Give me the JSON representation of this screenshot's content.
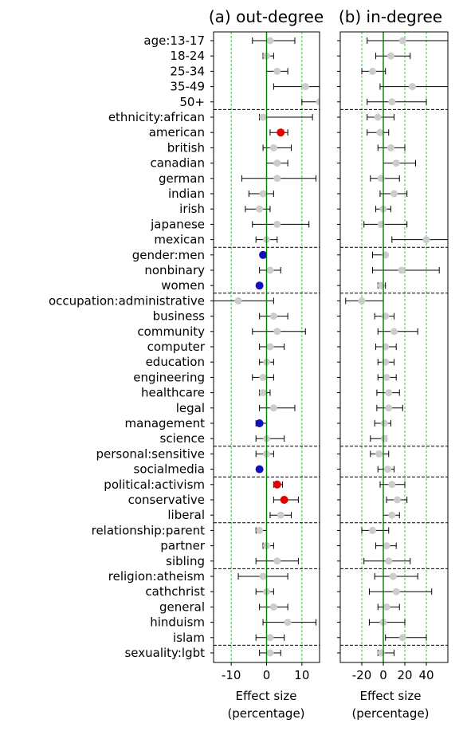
{
  "panels": [
    {
      "title": "(a) out-degree",
      "xlabel_line1": "Effect size",
      "xlabel_line2": "(percentage)",
      "xticks": [
        -10,
        0,
        10
      ],
      "xtick_labels": [
        "-10",
        "0",
        "10"
      ],
      "xlim": [
        -15,
        15
      ],
      "gridlines": [
        -10,
        0,
        10
      ]
    },
    {
      "title": "(b) in-degree",
      "xlabel_line1": "Effect size",
      "xlabel_line2": "(percentage)",
      "xticks": [
        -20,
        0,
        20,
        40
      ],
      "xtick_labels": [
        "-20",
        "0",
        "20",
        "40"
      ],
      "xlim": [
        -40,
        60
      ],
      "gridlines": [
        -20,
        0,
        20,
        40
      ]
    }
  ],
  "colors": {
    "significant_positive": "#e00000",
    "significant_negative": "#1010c0",
    "non_significant": "#cccccc",
    "zero_line": "#008000",
    "gridline": "#33cc33",
    "separator": "#000000",
    "errorbar": "#000000"
  },
  "chart_data": {
    "type": "scatter",
    "description_of_encoding": "point estimates with error bars (confidence interval); separate panels share categories",
    "categories": [
      "age:13-17",
      "18-24",
      "25-34",
      "35-49",
      "50+",
      "ethnicity:african",
      "american",
      "british",
      "canadian",
      "german",
      "indian",
      "irish",
      "japanese",
      "mexican",
      "gender:men",
      "nonbinary",
      "women",
      "occupation:administrative",
      "business",
      "community",
      "computer",
      "education",
      "engineering",
      "healthcare",
      "legal",
      "management",
      "science",
      "personal:sensitive",
      "socialmedia",
      "political:activism",
      "conservative",
      "liberal",
      "relationship:parent",
      "partner",
      "sibling",
      "religion:atheism",
      "cathchrist",
      "general",
      "hinduism",
      "islam",
      "sexuality:lgbt"
    ],
    "group_separators_after": [
      "50+",
      "mexican",
      "women",
      "science",
      "socialmedia",
      "liberal",
      "sibling",
      "islam"
    ],
    "series": [
      {
        "name": "(a) out-degree",
        "estimates": [
          1,
          0,
          3,
          11,
          15,
          -1,
          4,
          2,
          3,
          3,
          -1,
          -2,
          3,
          0,
          -1,
          1,
          -2,
          -8,
          2,
          3,
          1,
          0,
          -1,
          -1,
          2,
          -2,
          0,
          0,
          -2,
          3,
          5,
          4,
          -2,
          0,
          3,
          -1,
          0,
          2,
          6,
          1,
          1
        ],
        "lower": [
          -4,
          -1,
          0,
          2,
          10,
          -2,
          1,
          -1,
          0,
          -7,
          -5,
          -6,
          -4,
          -3,
          -1.5,
          -2,
          -2.5,
          -17,
          -2,
          -4,
          -2,
          -2,
          -4,
          -2,
          -2,
          -3,
          -3,
          -3,
          -2.5,
          2,
          2,
          1,
          -3,
          -1,
          -3,
          -8,
          -3,
          -2,
          -1,
          -3,
          -2
        ],
        "upper": [
          8,
          2,
          6,
          20,
          20,
          13,
          6,
          7,
          6,
          14,
          2,
          1,
          12,
          3,
          -0.5,
          4,
          -1.5,
          2,
          6,
          11,
          5,
          2,
          2,
          1,
          8,
          0,
          5,
          2,
          -1.5,
          4.5,
          9,
          7,
          0,
          2,
          9,
          6,
          2,
          6,
          14,
          5,
          4
        ],
        "significance": [
          "ns",
          "ns",
          "ns",
          "ns",
          "ns",
          "ns",
          "pos",
          "ns",
          "ns",
          "ns",
          "ns",
          "ns",
          "ns",
          "ns",
          "neg",
          "ns",
          "neg",
          "ns",
          "ns",
          "ns",
          "ns",
          "ns",
          "ns",
          "ns",
          "ns",
          "neg",
          "ns",
          "ns",
          "neg",
          "pos",
          "pos",
          "ns",
          "ns",
          "ns",
          "ns",
          "ns",
          "ns",
          "ns",
          "ns",
          "ns",
          "ns"
        ]
      },
      {
        "name": "(b) in-degree",
        "estimates": [
          18,
          7,
          -10,
          27,
          8,
          -5,
          -3,
          7,
          12,
          -2,
          10,
          0,
          -2,
          40,
          2,
          17,
          -2,
          -20,
          2,
          10,
          2,
          2,
          3,
          5,
          5,
          1,
          1,
          -4,
          4,
          8,
          13,
          8,
          -10,
          3,
          5,
          9,
          12,
          3,
          0,
          18,
          -2
        ],
        "lower": [
          -15,
          -7,
          -20,
          -3,
          -15,
          -15,
          -15,
          -5,
          0,
          -12,
          -3,
          -7,
          -18,
          8,
          -10,
          -10,
          -5,
          -35,
          -8,
          -5,
          -7,
          -5,
          -5,
          -6,
          -6,
          -8,
          -12,
          -12,
          -5,
          -3,
          3,
          0,
          -20,
          -7,
          -18,
          -8,
          -13,
          -5,
          -13,
          2,
          -5
        ],
        "upper": [
          60,
          25,
          2,
          60,
          40,
          10,
          5,
          20,
          30,
          15,
          22,
          7,
          22,
          60,
          3,
          52,
          2,
          0,
          10,
          32,
          12,
          10,
          12,
          15,
          18,
          7,
          3,
          5,
          10,
          20,
          22,
          15,
          5,
          12,
          25,
          32,
          45,
          15,
          20,
          40,
          10
        ],
        "significance": [
          "ns",
          "ns",
          "ns",
          "ns",
          "ns",
          "ns",
          "ns",
          "ns",
          "ns",
          "ns",
          "ns",
          "ns",
          "ns",
          "ns",
          "ns",
          "ns",
          "ns",
          "ns",
          "ns",
          "ns",
          "ns",
          "ns",
          "ns",
          "ns",
          "ns",
          "ns",
          "ns",
          "ns",
          "ns",
          "ns",
          "ns",
          "ns",
          "ns",
          "ns",
          "ns",
          "ns",
          "ns",
          "ns",
          "ns",
          "ns",
          "ns"
        ]
      }
    ]
  }
}
